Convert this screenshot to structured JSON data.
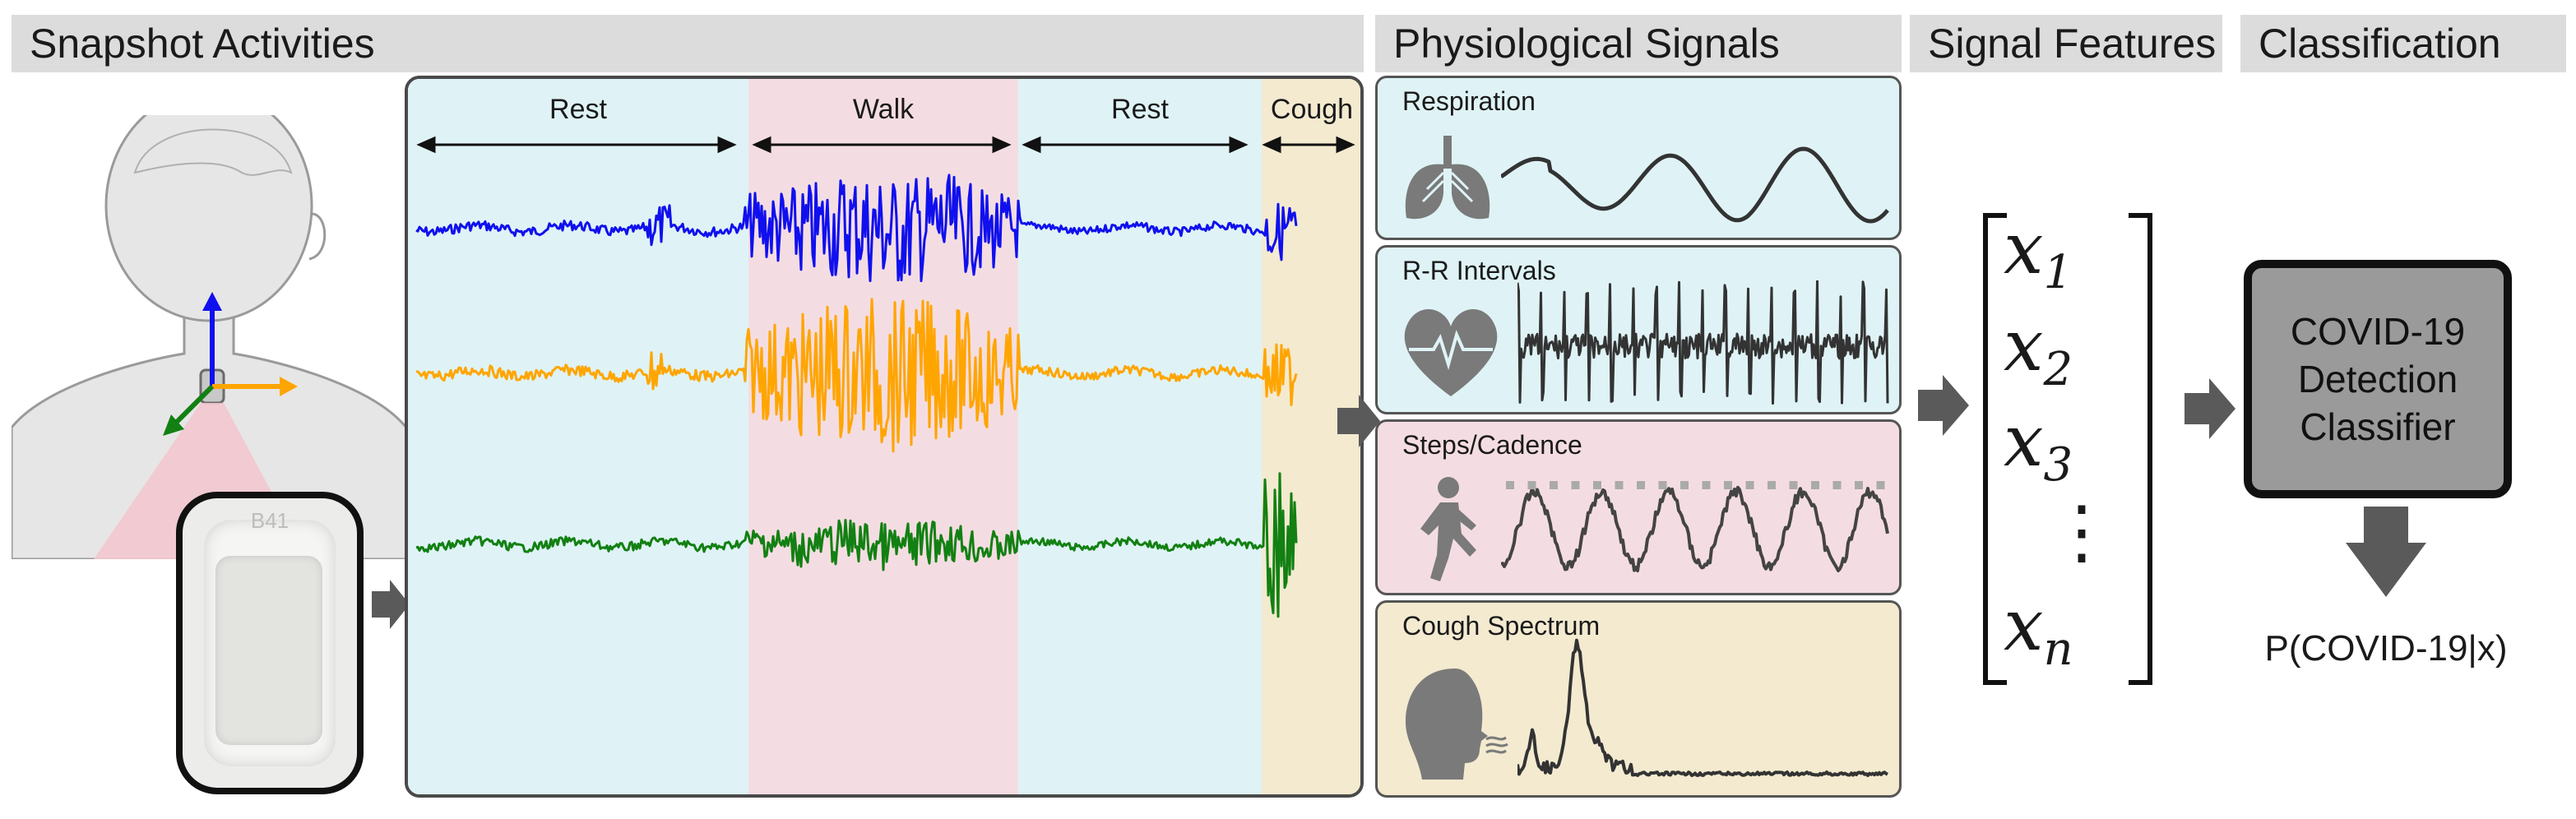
{
  "headers": {
    "snapshot": "Snapshot Activities",
    "physio": "Physiological Signals",
    "features": "Signal Features",
    "classification": "Classification"
  },
  "segments": [
    {
      "label": "Rest",
      "color": "#dff3f6"
    },
    {
      "label": "Walk",
      "color": "#f4dde2"
    },
    {
      "label": "Rest",
      "color": "#dff3f6"
    },
    {
      "label": "Cough",
      "color": "#f3ead0"
    }
  ],
  "traces": [
    {
      "axis": "x",
      "color": "#1010ee"
    },
    {
      "axis": "y",
      "color": "#ffa500"
    },
    {
      "axis": "z",
      "color": "#128012"
    }
  ],
  "device_label": "B41",
  "signals": [
    {
      "title": "Respiration",
      "icon": "lungs-icon",
      "bg": "#dff3f6"
    },
    {
      "title": "R-R Intervals",
      "icon": "heart-icon",
      "bg": "#dff3f6"
    },
    {
      "title": "Steps/Cadence",
      "icon": "walking-person-icon",
      "bg": "#f4dde2"
    },
    {
      "title": "Cough Spectrum",
      "icon": "coughing-head-icon",
      "bg": "#f3ead0"
    }
  ],
  "feature_vector": [
    {
      "sym": "x",
      "sub": "1"
    },
    {
      "sym": "x",
      "sub": "2"
    },
    {
      "sym": "x",
      "sub": "3"
    },
    {
      "sym": "⋮",
      "sub": ""
    },
    {
      "sym": "x",
      "sub": "n"
    }
  ],
  "classifier": {
    "line1": "COVID-19",
    "line2": "Detection",
    "line3": "Classifier"
  },
  "output_label": "P(COVID-19|x)",
  "colors": {
    "arrow": "#5a5a5a",
    "header_bg": "#dcdcdc",
    "classifier_bg": "#9a9a9a"
  }
}
